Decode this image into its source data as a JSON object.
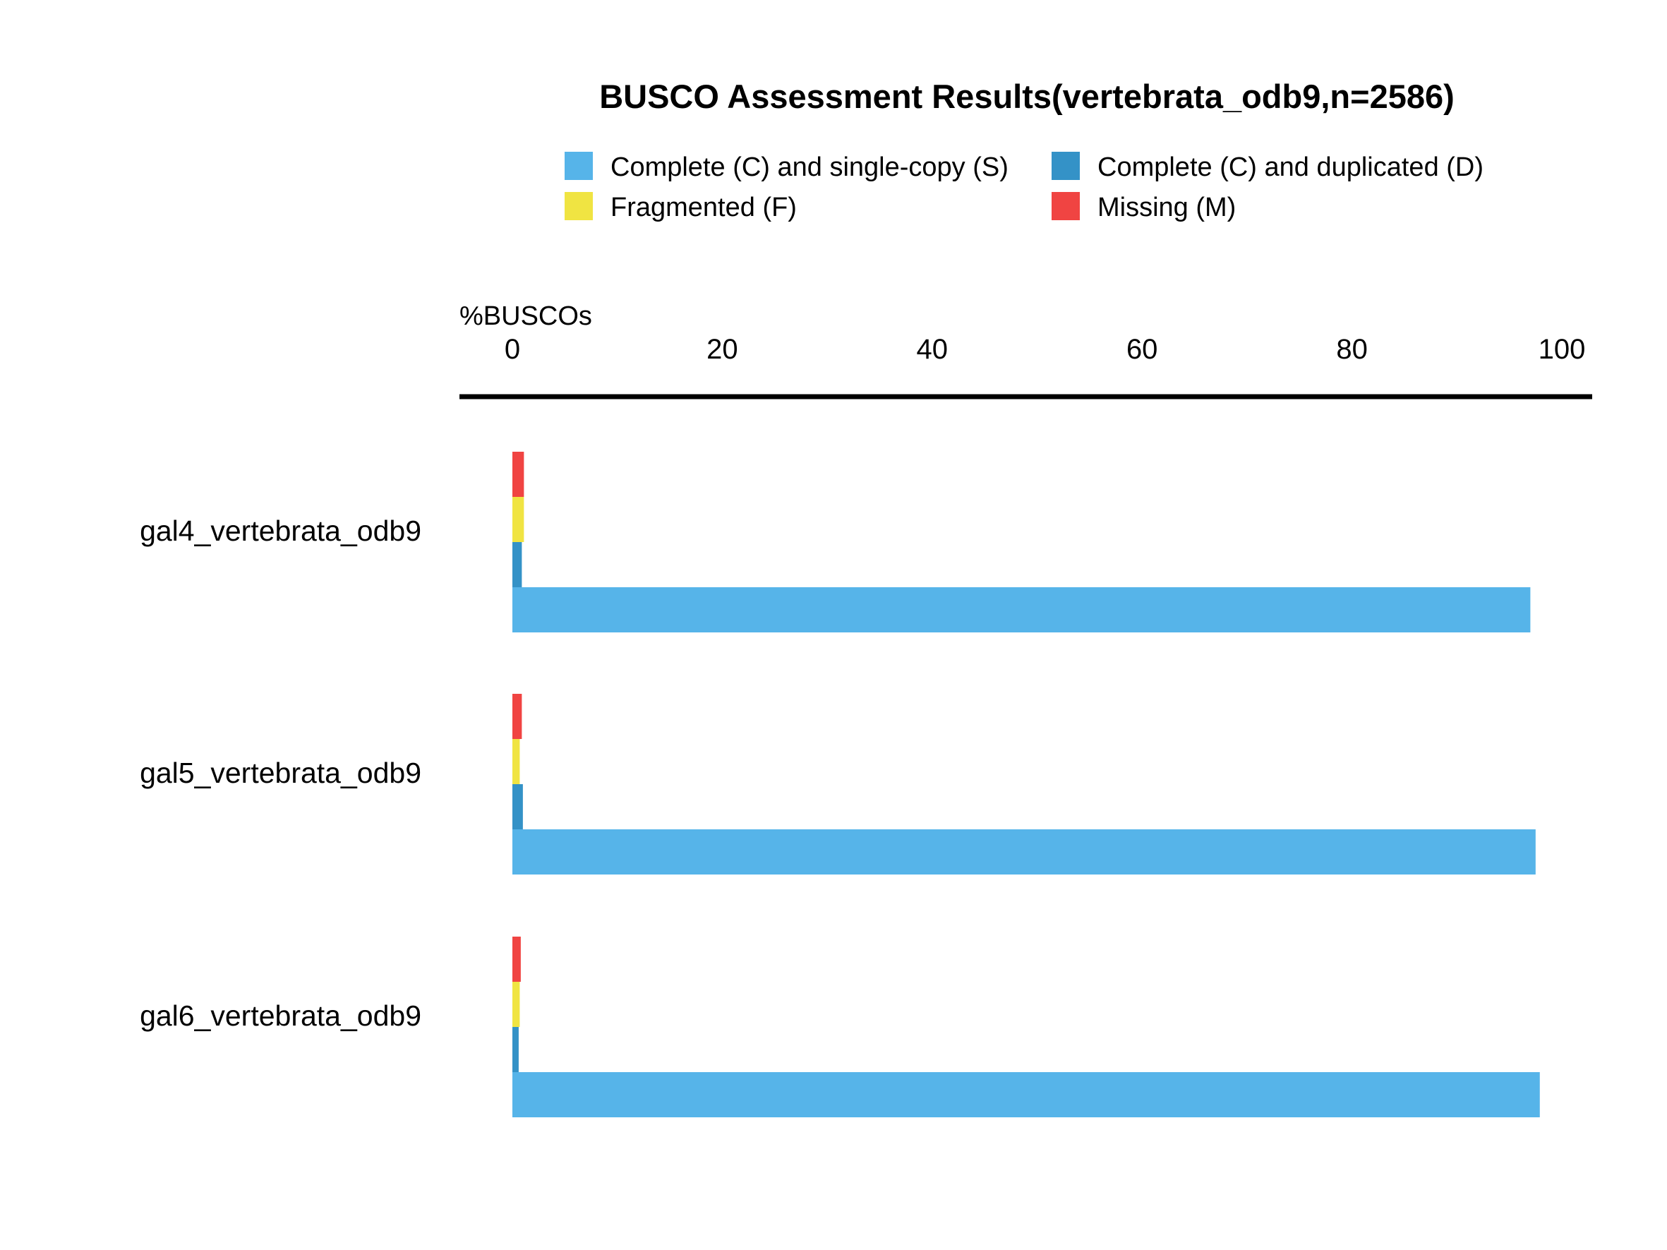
{
  "chart_data": {
    "type": "bar",
    "orientation": "horizontal",
    "title": "BUSCO Assessment Results(vertebrata_odb9,n=2586)",
    "xlabel": "%BUSCOs",
    "ylabel": "",
    "xlim": [
      0,
      100
    ],
    "xticks": [
      "0",
      "20",
      "40",
      "60",
      "80",
      "100"
    ],
    "axis_position": "top",
    "grid": false,
    "legend_position": "top",
    "categories": [
      "gal4_vertebrata_odb9",
      "gal5_vertebrata_odb9",
      "gal6_vertebrata_odb9"
    ],
    "series": [
      {
        "name": "Complete (C) and single-copy (S)",
        "color": "#56b4e9",
        "values": [
          97.0,
          97.5,
          97.9
        ]
      },
      {
        "name": "Complete (C) and duplicated (D)",
        "color": "#3492c7",
        "values": [
          0.9,
          1.0,
          0.6
        ]
      },
      {
        "name": "Fragmented (F)",
        "color": "#f0e442",
        "values": [
          1.1,
          0.7,
          0.7
        ]
      },
      {
        "name": "Missing (M)",
        "color": "#f04442",
        "values": [
          1.1,
          0.9,
          0.8
        ]
      }
    ],
    "legend_order": [
      0,
      1,
      2,
      3
    ]
  }
}
